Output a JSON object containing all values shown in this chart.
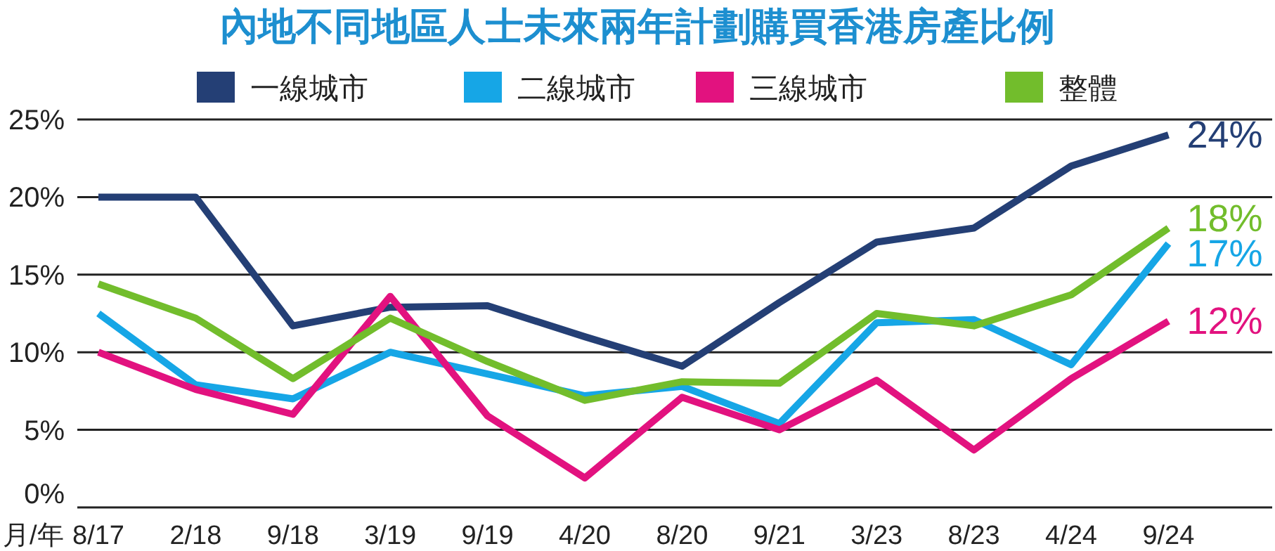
{
  "chart_data": {
    "type": "line",
    "title": "內地不同地區人士未來兩年計劃購買香港房產比例",
    "xlabel": "月/年",
    "categories": [
      "8/17",
      "2/18",
      "9/18",
      "3/19",
      "9/19",
      "4/20",
      "8/20",
      "9/21",
      "3/23",
      "8/23",
      "4/24",
      "9/24"
    ],
    "series": [
      {
        "name": "一線城市",
        "color": "#243f75",
        "values": [
          20,
          20,
          11.7,
          12.9,
          13,
          11,
          9.1,
          13.2,
          17.1,
          18,
          22,
          24
        ],
        "value_labels": [
          null,
          null,
          null,
          null,
          null,
          null,
          null,
          null,
          null,
          null,
          null,
          "24%"
        ]
      },
      {
        "name": "二線城市",
        "color": "#16a6e6",
        "values": [
          12.5,
          7.9,
          7,
          10,
          8.6,
          7.2,
          7.8,
          5.4,
          11.9,
          12.1,
          9.2,
          17
        ],
        "value_labels": [
          null,
          null,
          null,
          null,
          null,
          null,
          null,
          null,
          null,
          null,
          null,
          "17%"
        ]
      },
      {
        "name": "三線城市",
        "color": "#e2127f",
        "values": [
          10,
          7.6,
          6,
          13.6,
          5.9,
          1.9,
          7.1,
          5,
          8.2,
          3.7,
          8.3,
          12
        ],
        "value_labels": [
          null,
          null,
          null,
          null,
          null,
          null,
          null,
          null,
          null,
          null,
          null,
          "12%"
        ]
      },
      {
        "name": "整體",
        "color": "#72bd2c",
        "values": [
          14.4,
          12.2,
          8.3,
          12.2,
          9.4,
          6.9,
          8.1,
          8,
          12.5,
          11.7,
          13.7,
          18
        ],
        "value_labels": [
          null,
          null,
          null,
          null,
          null,
          null,
          null,
          null,
          null,
          null,
          null,
          "18%"
        ]
      }
    ],
    "ylim": [
      0,
      25
    ],
    "yticks": [
      {
        "value": 0,
        "label": "0%"
      },
      {
        "value": 5,
        "label": "5%"
      },
      {
        "value": 10,
        "label": "10%"
      },
      {
        "value": 15,
        "label": "15%"
      },
      {
        "value": 20,
        "label": "20%"
      },
      {
        "value": 25,
        "label": "25%"
      }
    ],
    "grid": "y",
    "legend": "top",
    "marker": "none",
    "line_style": "solid"
  }
}
